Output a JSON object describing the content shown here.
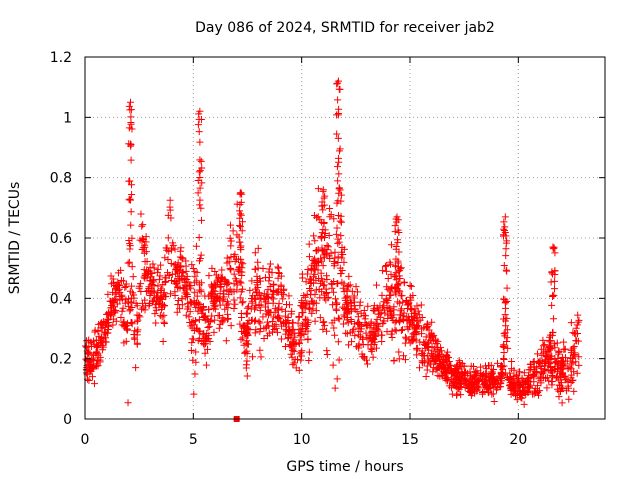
{
  "chart_data": {
    "type": "scatter",
    "title": "Day 086 of 2024, SRMTID for receiver jab2",
    "xlabel": "GPS time / hours",
    "ylabel": "SRMTID / TECUs",
    "xlim": [
      0,
      24
    ],
    "ylim": [
      0,
      1.2
    ],
    "xticks": [
      0,
      5,
      10,
      15,
      20
    ],
    "xtick_labels": [
      "0",
      "5",
      "10",
      "15",
      "20"
    ],
    "yticks": [
      0,
      0.2,
      0.4,
      0.6,
      0.8,
      1.0,
      1.2
    ],
    "ytick_labels": [
      "0",
      "0.2",
      "0.4",
      "0.6",
      "0.8",
      "1",
      "1.2"
    ],
    "grid": true,
    "marker": "plus",
    "color": "#ff0000",
    "envelope": {
      "x": [
        0.0,
        0.3,
        0.6,
        0.9,
        1.2,
        1.5,
        1.8,
        2.0,
        2.2,
        2.4,
        2.6,
        2.8,
        3.0,
        3.3,
        3.6,
        3.9,
        4.2,
        4.5,
        4.8,
        5.0,
        5.2,
        5.4,
        5.6,
        5.9,
        6.2,
        6.5,
        6.8,
        7.1,
        7.4,
        7.7,
        8.0,
        8.3,
        8.6,
        8.9,
        9.2,
        9.5,
        9.8,
        10.1,
        10.4,
        10.7,
        11.0,
        11.3,
        11.6,
        11.8,
        12.0,
        12.3,
        12.6,
        12.9,
        13.2,
        13.5,
        13.8,
        14.1,
        14.4,
        14.7,
        15.0,
        15.3,
        15.6,
        15.9,
        16.2,
        16.5,
        16.8,
        17.1,
        17.4,
        17.7,
        18.0,
        18.3,
        18.6,
        18.9,
        19.2,
        19.4,
        19.6,
        19.9,
        20.2,
        20.5,
        20.8,
        21.1,
        21.4,
        21.7,
        22.0,
        22.3,
        22.6,
        22.8
      ],
      "center": [
        0.18,
        0.2,
        0.22,
        0.28,
        0.36,
        0.42,
        0.36,
        0.45,
        0.42,
        0.3,
        0.55,
        0.48,
        0.45,
        0.4,
        0.38,
        0.55,
        0.48,
        0.46,
        0.42,
        0.3,
        0.5,
        0.35,
        0.3,
        0.4,
        0.42,
        0.38,
        0.48,
        0.5,
        0.25,
        0.38,
        0.4,
        0.38,
        0.42,
        0.4,
        0.35,
        0.28,
        0.25,
        0.35,
        0.4,
        0.55,
        0.45,
        0.48,
        0.5,
        0.6,
        0.4,
        0.35,
        0.32,
        0.28,
        0.25,
        0.35,
        0.38,
        0.4,
        0.42,
        0.35,
        0.32,
        0.3,
        0.28,
        0.22,
        0.2,
        0.17,
        0.15,
        0.13,
        0.14,
        0.12,
        0.14,
        0.12,
        0.13,
        0.12,
        0.14,
        0.3,
        0.12,
        0.11,
        0.1,
        0.12,
        0.15,
        0.18,
        0.2,
        0.17,
        0.15,
        0.18,
        0.2,
        0.28
      ],
      "spread": [
        0.07,
        0.08,
        0.08,
        0.08,
        0.1,
        0.1,
        0.12,
        0.35,
        0.3,
        0.12,
        0.2,
        0.15,
        0.12,
        0.1,
        0.12,
        0.18,
        0.1,
        0.1,
        0.12,
        0.25,
        0.35,
        0.12,
        0.12,
        0.12,
        0.12,
        0.14,
        0.18,
        0.2,
        0.12,
        0.15,
        0.15,
        0.15,
        0.15,
        0.15,
        0.12,
        0.1,
        0.1,
        0.15,
        0.2,
        0.2,
        0.25,
        0.25,
        0.45,
        0.3,
        0.12,
        0.12,
        0.1,
        0.1,
        0.1,
        0.15,
        0.15,
        0.18,
        0.22,
        0.15,
        0.12,
        0.12,
        0.12,
        0.1,
        0.08,
        0.07,
        0.06,
        0.06,
        0.06,
        0.06,
        0.06,
        0.06,
        0.06,
        0.06,
        0.06,
        0.2,
        0.06,
        0.06,
        0.06,
        0.06,
        0.07,
        0.08,
        0.1,
        0.1,
        0.1,
        0.12,
        0.12,
        0.1
      ],
      "points_per_hour": 95
    },
    "spikes": [
      {
        "x": 2.1,
        "y": 1.05
      },
      {
        "x": 5.3,
        "y": 1.02
      },
      {
        "x": 11.7,
        "y": 1.12
      },
      {
        "x": 7.2,
        "y": 0.75
      },
      {
        "x": 11.0,
        "y": 0.76
      },
      {
        "x": 19.4,
        "y": 0.67
      },
      {
        "x": 21.6,
        "y": 0.57
      },
      {
        "x": 14.4,
        "y": 0.67
      }
    ],
    "outlier": {
      "x": 7.0,
      "y": 0.0
    }
  }
}
